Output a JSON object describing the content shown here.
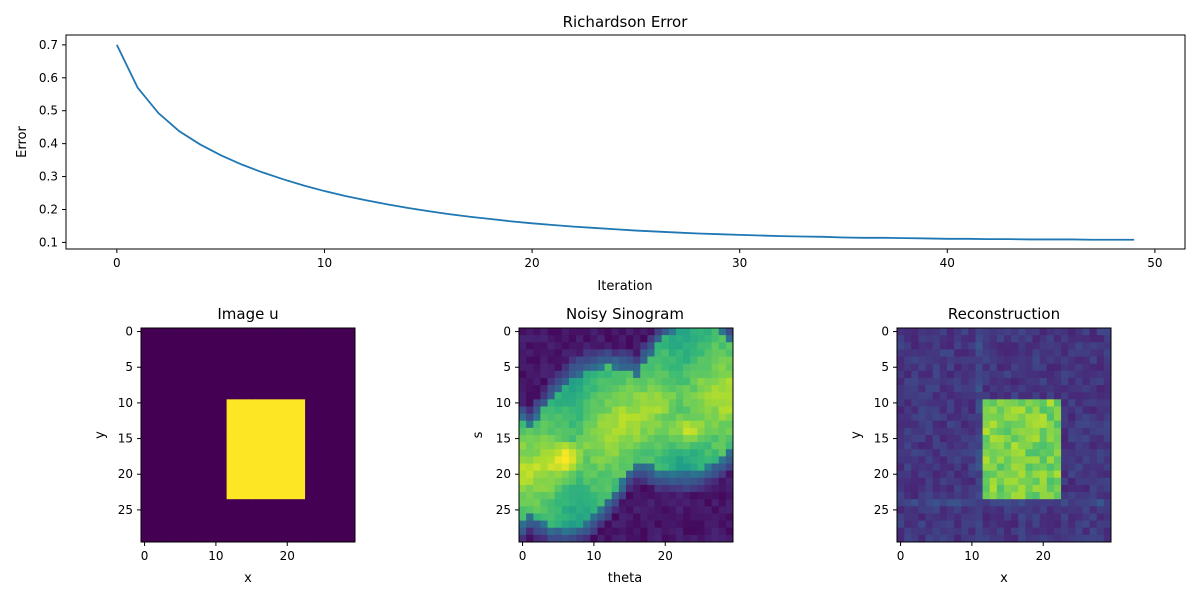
{
  "colors": {
    "line": "#1f77b4",
    "viridis_low": "#440154",
    "viridis_high": "#fde725"
  },
  "chart_data": [
    {
      "type": "line",
      "title": "Richardson Error",
      "xlabel": "Iteration",
      "ylabel": "Error",
      "xlim": [
        -2.45,
        51.45
      ],
      "ylim": [
        0.08,
        0.73
      ],
      "xticks": [
        "0",
        "10",
        "20",
        "30",
        "40",
        "50"
      ],
      "yticks": [
        "0.1",
        "0.2",
        "0.3",
        "0.4",
        "0.5",
        "0.6",
        "0.7"
      ],
      "x": [
        0,
        1,
        2,
        3,
        4,
        5,
        6,
        7,
        8,
        9,
        10,
        11,
        12,
        13,
        14,
        15,
        16,
        17,
        18,
        19,
        20,
        21,
        22,
        23,
        24,
        25,
        26,
        27,
        28,
        29,
        30,
        31,
        32,
        33,
        34,
        35,
        36,
        37,
        38,
        39,
        40,
        41,
        42,
        43,
        44,
        45,
        46,
        47,
        48,
        49
      ],
      "y": [
        0.7,
        0.57,
        0.493,
        0.438,
        0.398,
        0.365,
        0.337,
        0.313,
        0.292,
        0.273,
        0.256,
        0.241,
        0.228,
        0.216,
        0.205,
        0.195,
        0.186,
        0.178,
        0.171,
        0.164,
        0.158,
        0.153,
        0.148,
        0.144,
        0.14,
        0.136,
        0.133,
        0.13,
        0.127,
        0.125,
        0.123,
        0.121,
        0.119,
        0.118,
        0.117,
        0.115,
        0.114,
        0.114,
        0.113,
        0.112,
        0.111,
        0.111,
        0.11,
        0.11,
        0.109,
        0.109,
        0.109,
        0.108,
        0.108,
        0.108
      ],
      "grid": false
    },
    {
      "type": "heatmap",
      "title": "Image u",
      "xlabel": "x",
      "ylabel": "y",
      "xticks": [
        "0",
        "10",
        "20"
      ],
      "yticks": [
        "0",
        "5",
        "10",
        "15",
        "20",
        "25"
      ],
      "size": 30,
      "rect": {
        "row_start": 10,
        "row_end": 23,
        "col_start": 12,
        "col_end": 22
      },
      "value_inside": 1.0,
      "value_outside": 0.0
    },
    {
      "type": "heatmap",
      "title": "Noisy Sinogram",
      "xlabel": "theta",
      "ylabel": "s",
      "xticks": [
        "0",
        "10",
        "20"
      ],
      "yticks": [
        "0",
        "5",
        "10",
        "15",
        "20",
        "25"
      ],
      "size": 30,
      "hotspots": [
        {
          "row": 18,
          "col": 6
        },
        {
          "row": 14,
          "col": 23
        }
      ]
    },
    {
      "type": "heatmap",
      "title": "Reconstruction",
      "xlabel": "x",
      "ylabel": "y",
      "xticks": [
        "0",
        "10",
        "20"
      ],
      "yticks": [
        "0",
        "5",
        "10",
        "15",
        "20",
        "25"
      ],
      "size": 30,
      "rect": {
        "row_start": 10,
        "row_end": 23,
        "col_start": 12,
        "col_end": 22
      },
      "value_inside": 0.8,
      "value_outside": 0.1
    }
  ]
}
